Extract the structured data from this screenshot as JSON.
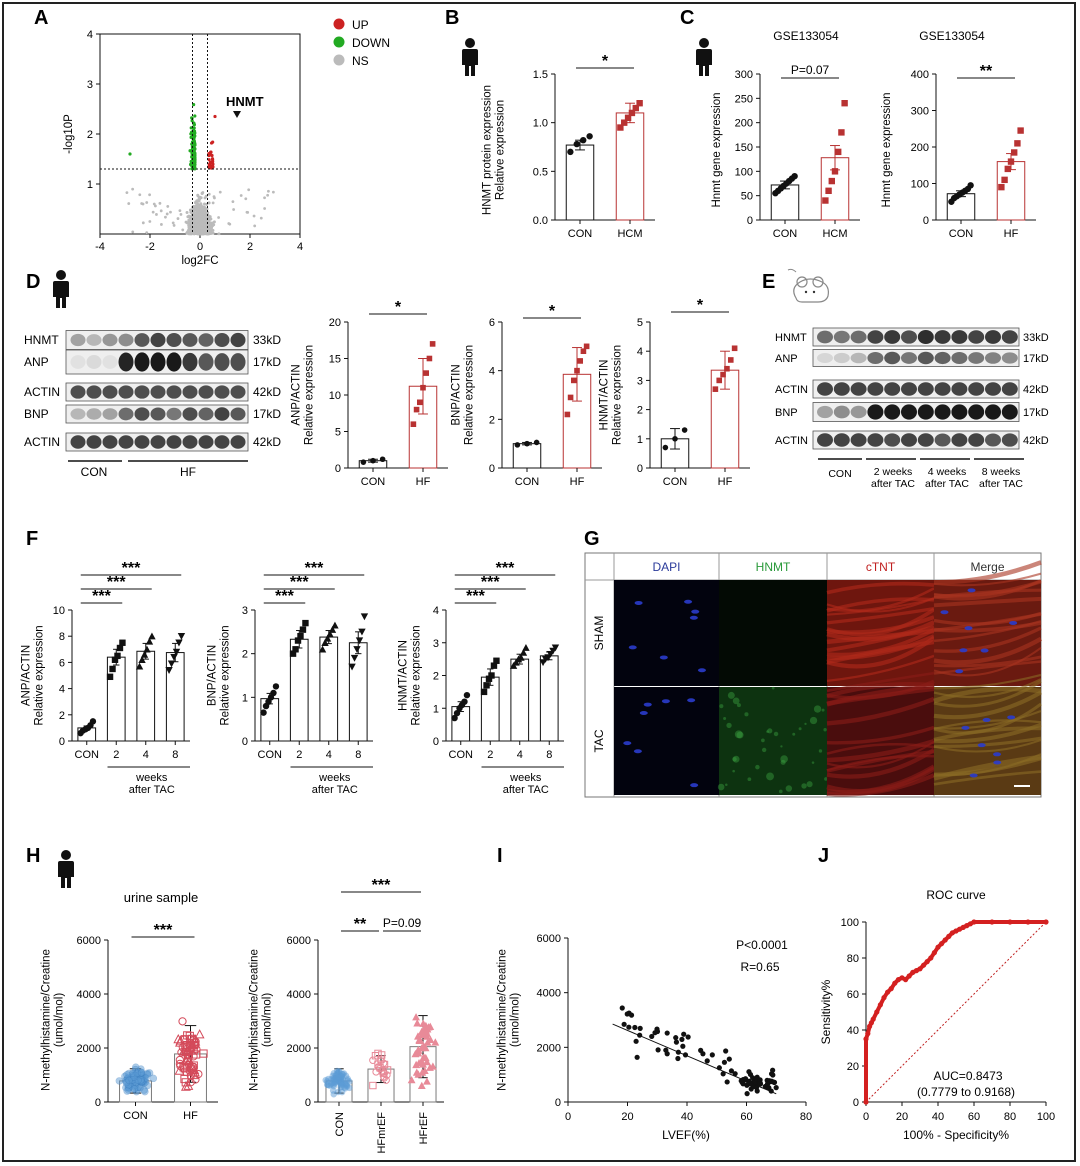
{
  "panels": {
    "A": "A",
    "B": "B",
    "C": "C",
    "D": "D",
    "E": "E",
    "F": "F",
    "G": "G",
    "H": "H",
    "I": "I",
    "J": "J"
  },
  "colors": {
    "up": "#cc2222",
    "down": "#22aa22",
    "ns": "#bbbbbb",
    "bar_red": "#b83232",
    "blue": "#5b9bd5",
    "pink": "#e88a98"
  },
  "chart_data": [
    {
      "id": "A",
      "type": "scatter",
      "xlabel": "log2FC",
      "ylabel": "-log10P",
      "xlim": [
        -4,
        4
      ],
      "ylim": [
        0,
        4
      ],
      "xticks": [
        "-4",
        "-2",
        "0",
        "2",
        "4"
      ],
      "yticks": [
        "1",
        "2",
        "3",
        "4"
      ],
      "legend": [
        "UP",
        "DOWN",
        "NS"
      ],
      "legend_position": "right",
      "annotation": "HNMT",
      "thresholds": {
        "fc": [
          -0.3,
          0.3
        ],
        "p": 1.3
      }
    },
    {
      "id": "B",
      "type": "bar",
      "ylabel_lines": [
        "HNMT protein expression",
        "Relative expression"
      ],
      "categories": [
        "CON",
        "HCM"
      ],
      "values": [
        0.77,
        1.1
      ],
      "errors": [
        0.05,
        0.1
      ],
      "ylim": [
        0,
        1.5
      ],
      "yticks": [
        "0.0",
        "0.5",
        "1.0",
        "1.5"
      ],
      "points": [
        [
          0.7,
          0.78,
          0.82,
          0.86
        ],
        [
          0.95,
          1.0,
          1.05,
          1.1,
          1.15,
          1.2
        ]
      ],
      "sig": [
        {
          "a": 0,
          "b": 1,
          "label": "*"
        }
      ]
    },
    {
      "id": "C1",
      "type": "bar",
      "title": "GSE133054",
      "ylabel": "Hnmt gene expression",
      "categories": [
        "CON",
        "HCM"
      ],
      "values": [
        72,
        128
      ],
      "errors": [
        8,
        25
      ],
      "ylim": [
        0,
        300
      ],
      "yticks": [
        "0",
        "50",
        "100",
        "150",
        "200",
        "250",
        "300"
      ],
      "points": [
        [
          55,
          60,
          65,
          70,
          75,
          80,
          85,
          90
        ],
        [
          40,
          60,
          80,
          100,
          140,
          180,
          240
        ]
      ],
      "sig": [
        {
          "a": 0,
          "b": 1,
          "label": "P=0.07"
        }
      ]
    },
    {
      "id": "C2",
      "type": "bar",
      "title": "GSE133054",
      "ylabel": "Hnmt gene expression",
      "categories": [
        "CON",
        "HF"
      ],
      "values": [
        72,
        160
      ],
      "errors": [
        8,
        22
      ],
      "ylim": [
        0,
        400
      ],
      "yticks": [
        "0",
        "100",
        "200",
        "300",
        "400"
      ],
      "points": [
        [
          50,
          60,
          65,
          70,
          75,
          80,
          85,
          95
        ],
        [
          90,
          110,
          140,
          160,
          185,
          210,
          245
        ]
      ],
      "sig": [
        {
          "a": 0,
          "b": 1,
          "label": "**"
        }
      ]
    },
    {
      "id": "D1",
      "type": "bar",
      "ylabel_lines": [
        "ANP/ACTIN",
        "Relative expression"
      ],
      "categories": [
        "CON",
        "HF"
      ],
      "values": [
        1,
        11.2
      ],
      "errors": [
        0.2,
        3.8
      ],
      "ylim": [
        0,
        20
      ],
      "yticks": [
        "0",
        "5",
        "10",
        "15",
        "20"
      ],
      "points": [
        [
          0.8,
          1.0,
          1.2
        ],
        [
          6,
          8,
          9,
          11,
          13,
          15,
          17
        ]
      ],
      "sig": [
        {
          "a": 0,
          "b": 1,
          "label": "*"
        }
      ]
    },
    {
      "id": "D2",
      "type": "bar",
      "ylabel_lines": [
        "BNP/ACTIN",
        "Relative expression"
      ],
      "categories": [
        "CON",
        "HF"
      ],
      "values": [
        1,
        3.85
      ],
      "errors": [
        0.05,
        1.1
      ],
      "ylim": [
        0,
        6
      ],
      "yticks": [
        "0",
        "2",
        "4",
        "6"
      ],
      "points": [
        [
          0.95,
          1.0,
          1.05
        ],
        [
          2.2,
          2.9,
          3.6,
          4.0,
          4.4,
          4.8,
          5.0
        ]
      ],
      "sig": [
        {
          "a": 0,
          "b": 1,
          "label": "*"
        }
      ]
    },
    {
      "id": "D3",
      "type": "bar",
      "ylabel_lines": [
        "HNMT/ACTIN",
        "Relative expression"
      ],
      "categories": [
        "CON",
        "HF"
      ],
      "values": [
        1,
        3.35
      ],
      "errors": [
        0.35,
        0.65
      ],
      "ylim": [
        0,
        5
      ],
      "yticks": [
        "0",
        "1",
        "2",
        "3",
        "4",
        "5"
      ],
      "points": [
        [
          0.7,
          1.0,
          1.3
        ],
        [
          2.7,
          3.0,
          3.2,
          3.4,
          3.7,
          4.1
        ]
      ],
      "sig": [
        {
          "a": 0,
          "b": 1,
          "label": "*"
        }
      ]
    },
    {
      "id": "F1",
      "type": "bar",
      "ylabel_lines": [
        "ANP/ACTIN",
        "Relative expression"
      ],
      "categories": [
        "CON",
        "2",
        "4",
        "8"
      ],
      "group_label": [
        "weeks",
        "after TAC"
      ],
      "values": [
        1.0,
        6.4,
        6.85,
        6.75
      ],
      "errors": [
        0.15,
        0.6,
        0.6,
        0.7
      ],
      "ylim": [
        0,
        10
      ],
      "yticks": [
        "0",
        "2",
        "4",
        "6",
        "8",
        "10"
      ],
      "markers": [
        "circle",
        "square",
        "triangle",
        "tridown"
      ],
      "points": [
        [
          0.6,
          0.8,
          0.9,
          1.0,
          1.2,
          1.5
        ],
        [
          4.9,
          5.5,
          6.2,
          6.5,
          7.1,
          7.5
        ],
        [
          5.7,
          6.2,
          6.6,
          7.0,
          7.6,
          8.0
        ],
        [
          5.4,
          5.9,
          6.4,
          6.8,
          7.5,
          8.0
        ]
      ],
      "sig": [
        {
          "a": 0,
          "b": 1,
          "label": "***"
        },
        {
          "a": 0,
          "b": 2,
          "label": "***"
        },
        {
          "a": 0,
          "b": 3,
          "label": "***"
        }
      ]
    },
    {
      "id": "F2",
      "type": "bar",
      "ylabel_lines": [
        "BNP/ACTIN",
        "Relative expression"
      ],
      "categories": [
        "CON",
        "2",
        "4",
        "8"
      ],
      "group_label": [
        "weeks",
        "after TAC"
      ],
      "values": [
        0.97,
        2.33,
        2.38,
        2.25
      ],
      "errors": [
        0.12,
        0.2,
        0.15,
        0.25
      ],
      "ylim": [
        0,
        3
      ],
      "yticks": [
        "0",
        "1",
        "2",
        "3"
      ],
      "markers": [
        "circle",
        "square",
        "triangle",
        "tridown"
      ],
      "points": [
        [
          0.65,
          0.8,
          0.9,
          1.0,
          1.1,
          1.25
        ],
        [
          2.0,
          2.1,
          2.3,
          2.4,
          2.55,
          2.7
        ],
        [
          2.1,
          2.25,
          2.35,
          2.45,
          2.55,
          2.65
        ],
        [
          1.7,
          1.9,
          2.1,
          2.3,
          2.5,
          2.85
        ]
      ],
      "sig": [
        {
          "a": 0,
          "b": 1,
          "label": "***"
        },
        {
          "a": 0,
          "b": 2,
          "label": "***"
        },
        {
          "a": 0,
          "b": 3,
          "label": "***"
        }
      ]
    },
    {
      "id": "F3",
      "type": "bar",
      "ylabel_lines": [
        "HNMT/ACTIN",
        "Relative expression"
      ],
      "categories": [
        "CON",
        "2",
        "4",
        "8"
      ],
      "group_label": [
        "weeks",
        "after TAC"
      ],
      "values": [
        1.05,
        1.95,
        2.5,
        2.6
      ],
      "errors": [
        0.15,
        0.25,
        0.15,
        0.12
      ],
      "ylim": [
        0,
        4
      ],
      "yticks": [
        "0",
        "1",
        "2",
        "3",
        "4"
      ],
      "markers": [
        "circle",
        "square",
        "triangle",
        "tridown"
      ],
      "points": [
        [
          0.7,
          0.85,
          1.0,
          1.1,
          1.2,
          1.4
        ],
        [
          1.5,
          1.7,
          1.9,
          2.0,
          2.3,
          2.45
        ],
        [
          2.3,
          2.4,
          2.5,
          2.55,
          2.7,
          2.85
        ],
        [
          2.4,
          2.5,
          2.55,
          2.65,
          2.75,
          2.85
        ]
      ],
      "sig": [
        {
          "a": 0,
          "b": 1,
          "label": "***"
        },
        {
          "a": 0,
          "b": 2,
          "label": "***"
        },
        {
          "a": 0,
          "b": 3,
          "label": "***"
        }
      ]
    },
    {
      "id": "H1",
      "type": "bar",
      "title": "urine sample",
      "ylabel_lines": [
        "N-methylhistamine/Creatine",
        "(umol/mol)"
      ],
      "categories": [
        "CON",
        "HF"
      ],
      "values": [
        780,
        1780
      ],
      "errors": [
        450,
        1050
      ],
      "ylim": [
        0,
        6000
      ],
      "yticks": [
        "0",
        "2000",
        "4000",
        "6000"
      ],
      "sig": [
        {
          "a": 0,
          "b": 1,
          "label": "***"
        }
      ]
    },
    {
      "id": "H2",
      "type": "bar",
      "ylabel_lines": [
        "N-methylhistamine/Creatine",
        "(umol/mol)"
      ],
      "categories": [
        "CON",
        "HFmrEF",
        "HFrEF"
      ],
      "values": [
        780,
        1220,
        2050
      ],
      "errors": [
        450,
        500,
        1150
      ],
      "ylim": [
        0,
        6000
      ],
      "yticks": [
        "0",
        "2000",
        "4000",
        "6000"
      ],
      "sig": [
        {
          "a": 0,
          "b": 1,
          "label": "**"
        },
        {
          "a": 1,
          "b": 2,
          "label": "P=0.09"
        },
        {
          "a": 0,
          "b": 2,
          "label": "***"
        }
      ]
    },
    {
      "id": "I",
      "type": "scatter",
      "xlabel": "LVEF(%)",
      "ylabel_lines": [
        "N-methylhistamine/Creatine",
        "(umol/mol)"
      ],
      "xlim": [
        0,
        80
      ],
      "ylim": [
        0,
        6000
      ],
      "xticks": [
        "0",
        "20",
        "40",
        "60",
        "80"
      ],
      "yticks": [
        "0",
        "2000",
        "4000",
        "6000"
      ],
      "stats": [
        "P<0.0001",
        "R=0.65"
      ],
      "fit": [
        [
          15,
          2850
        ],
        [
          70,
          300
        ]
      ]
    },
    {
      "id": "J",
      "type": "line",
      "title": "ROC curve",
      "xlabel": "100% - Specificity%",
      "ylabel": "Sensitivity%",
      "xlim": [
        0,
        100
      ],
      "ylim": [
        0,
        100
      ],
      "xticks": [
        "0",
        "20",
        "40",
        "60",
        "80",
        "100"
      ],
      "yticks": [
        "0",
        "20",
        "40",
        "60",
        "80",
        "100"
      ],
      "auc": "AUC=0.8473",
      "ci": "(0.7779 to 0.9168)",
      "x": [
        0,
        0,
        1,
        2,
        3,
        4,
        6,
        8,
        10,
        12,
        14,
        16,
        18,
        20,
        22,
        24,
        26,
        28,
        30,
        32,
        34,
        36,
        38,
        40,
        42,
        44,
        46,
        48,
        50,
        52,
        54,
        56,
        58,
        60,
        70,
        80,
        90,
        100
      ],
      "y": [
        0,
        35,
        38,
        42,
        44,
        46,
        50,
        54,
        58,
        61,
        63,
        66,
        68,
        69,
        68,
        70,
        72,
        73,
        74,
        76,
        78,
        80,
        83,
        86,
        88,
        90,
        92,
        94,
        95,
        96,
        97,
        98,
        99,
        100,
        100,
        100,
        100,
        100
      ]
    }
  ],
  "westernD": {
    "rows": [
      {
        "label": "HNMT",
        "kd": "33kD"
      },
      {
        "label": "ANP",
        "kd": "17kD"
      },
      {
        "label": "ACTIN",
        "kd": "42kD"
      },
      {
        "label": "BNP",
        "kd": "17kD"
      },
      {
        "label": "ACTIN",
        "kd": "42kD"
      }
    ],
    "groups": [
      "CON",
      "HF"
    ]
  },
  "westernE": {
    "rows": [
      {
        "label": "HNMT",
        "kd": "33kD"
      },
      {
        "label": "ANP",
        "kd": "17kD"
      },
      {
        "label": "ACTIN",
        "kd": "42kD"
      },
      {
        "label": "BNP",
        "kd": "17kD"
      },
      {
        "label": "ACTIN",
        "kd": "42kD"
      }
    ],
    "groups": [
      "CON",
      "2 weeks after TAC",
      "4 weeks after TAC",
      "8 weeks after TAC"
    ]
  },
  "microscopy": {
    "columns": [
      "DAPI",
      "HNMT",
      "cTNT",
      "Merge"
    ],
    "rows": [
      "SHAM",
      "TAC"
    ],
    "column_colors": [
      "#2a3a9a",
      "#2a9a3a",
      "#c02020",
      "#333333"
    ]
  }
}
